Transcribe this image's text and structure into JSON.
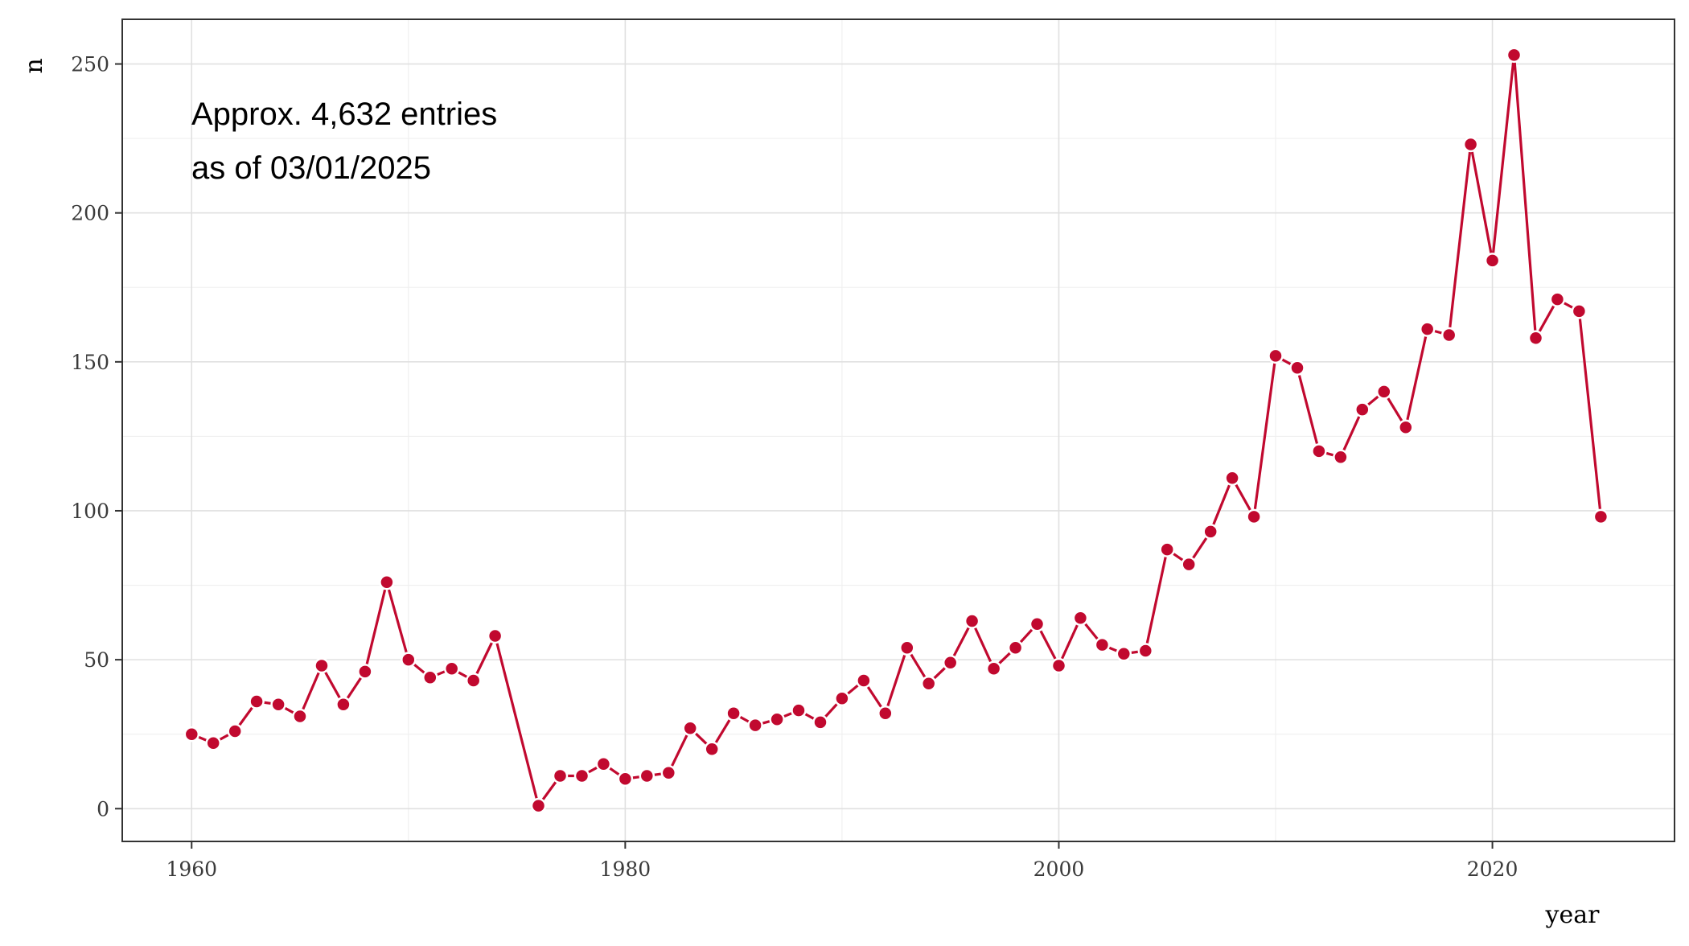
{
  "chart_data": {
    "type": "line",
    "xlabel": "year",
    "ylabel": "n",
    "xlim": [
      1956.8,
      2028.4
    ],
    "ylim": [
      -11,
      265
    ],
    "x_ticks": [
      1960,
      1980,
      2000,
      2020
    ],
    "y_ticks": [
      0,
      50,
      100,
      150,
      200,
      250
    ],
    "grid": true,
    "annotation": [
      "Approx. 4,632 entries",
      "as of 03/01/2025"
    ],
    "color": "#c1092f",
    "series": [
      {
        "x": [
          1960,
          1961,
          1962,
          1963,
          1964,
          1965,
          1966,
          1967,
          1968,
          1969,
          1970,
          1971,
          1972,
          1973,
          1974,
          1976,
          1977,
          1978,
          1979,
          1980,
          1981,
          1982,
          1983,
          1984,
          1985,
          1986,
          1987,
          1988,
          1989,
          1990,
          1991,
          1992,
          1993,
          1994,
          1995,
          1996,
          1997,
          1998,
          1999,
          2000,
          2001,
          2002,
          2003,
          2004,
          2005,
          2006,
          2007,
          2008,
          2009,
          2010,
          2011,
          2012,
          2013,
          2014,
          2015,
          2016,
          2017,
          2018,
          2019,
          2020,
          2021,
          2022,
          2023,
          2024,
          2025
        ],
        "values": [
          25,
          22,
          26,
          36,
          35,
          31,
          48,
          35,
          46,
          76,
          50,
          44,
          47,
          43,
          58,
          1,
          11,
          11,
          15,
          10,
          11,
          12,
          27,
          20,
          32,
          28,
          30,
          33,
          29,
          37,
          43,
          32,
          54,
          42,
          49,
          63,
          47,
          54,
          62,
          48,
          64,
          55,
          52,
          53,
          87,
          82,
          93,
          111,
          98,
          152,
          148,
          120,
          118,
          134,
          140,
          128,
          161,
          159,
          223,
          184,
          253,
          158,
          171,
          167,
          98
        ]
      }
    ]
  }
}
